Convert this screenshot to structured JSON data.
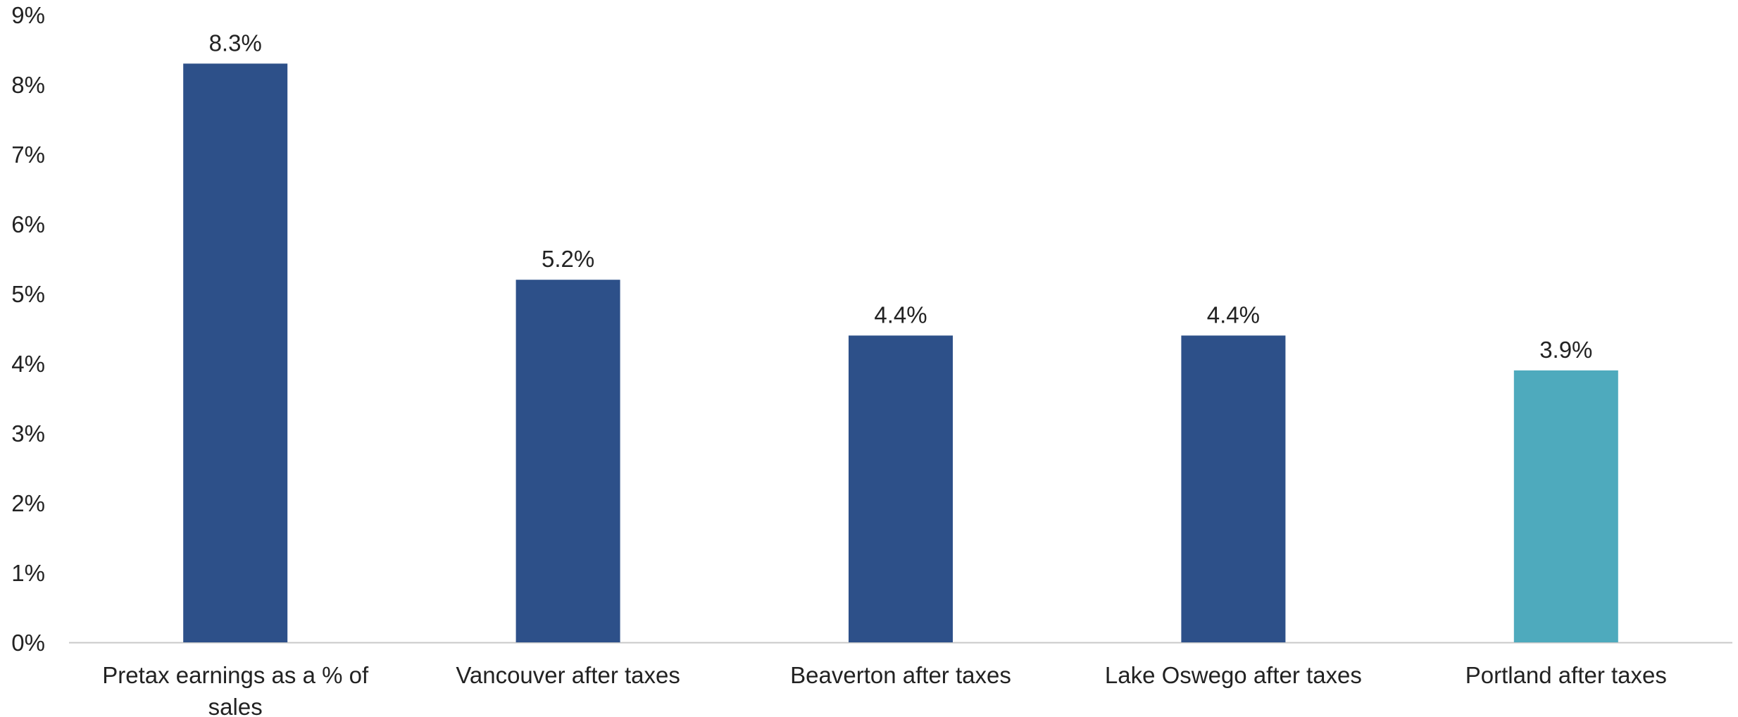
{
  "chart_data": {
    "type": "bar",
    "title": "",
    "xlabel": "",
    "ylabel": "",
    "ylim": [
      0,
      9
    ],
    "y_ticks": [
      0,
      1,
      2,
      3,
      4,
      5,
      6,
      7,
      8,
      9
    ],
    "y_tick_suffix": "%",
    "grid": false,
    "legend": "none",
    "categories": [
      [
        "Pretax earnings as a % of",
        "sales"
      ],
      [
        "Vancouver after taxes"
      ],
      [
        "Beaverton after taxes"
      ],
      [
        "Lake Oswego after taxes"
      ],
      [
        "Portland after taxes"
      ]
    ],
    "values": [
      8.3,
      5.2,
      4.4,
      4.4,
      3.9
    ],
    "data_labels": [
      "8.3%",
      "5.2%",
      "4.4%",
      "4.4%",
      "3.9%"
    ],
    "bar_colors": [
      "#2d5089",
      "#2d5089",
      "#2d5089",
      "#2d5089",
      "#4eaabd"
    ],
    "axis_color": "#c8c8c8"
  }
}
